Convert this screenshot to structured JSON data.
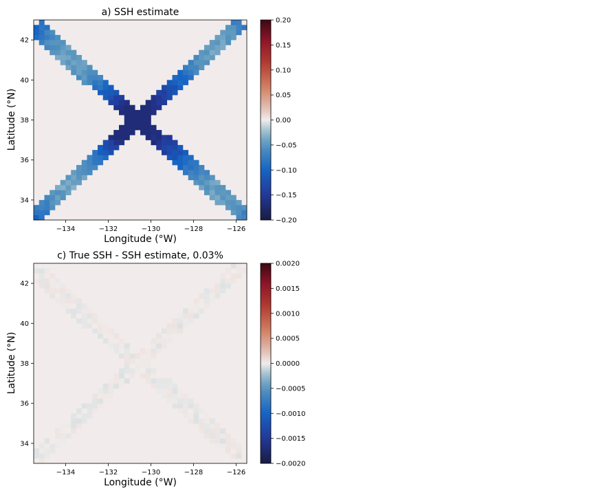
{
  "chart_data": [
    {
      "type": "heatmap",
      "title": "a) SSH estimate",
      "xlabel": "Longitude (°W)",
      "ylabel": "Latitude (°N)",
      "xlim": [
        -135.5,
        -125.5
      ],
      "ylim": [
        33.0,
        43.0
      ],
      "xticks": [
        -134,
        -132,
        -130,
        -128,
        -126
      ],
      "yticks": [
        34,
        36,
        38,
        40,
        42
      ],
      "xtick_labels": [
        "−134",
        "−132",
        "−130",
        "−128",
        "−126"
      ],
      "ytick_labels": [
        "34",
        "36",
        "38",
        "40",
        "42"
      ],
      "colorbar": {
        "range": [
          -0.2,
          0.2
        ],
        "ticks": [
          0.2,
          0.15,
          0.1,
          0.05,
          0.0,
          -0.05,
          -0.1,
          -0.15,
          -0.2
        ],
        "tick_labels": [
          "0.20",
          "0.15",
          "0.10",
          "0.05",
          "0.00",
          "−0.05",
          "−0.10",
          "−0.15",
          "−0.20"
        ],
        "colormap": "balance"
      },
      "background_value": 0.0,
      "tracks": [
        {
          "from": [
            -135.5,
            42.7
          ],
          "to": [
            -125.5,
            33.1
          ],
          "width_deg": 0.8
        },
        {
          "from": [
            -135.5,
            33.1
          ],
          "to": [
            -125.7,
            42.9
          ],
          "width_deg": 0.8
        }
      ],
      "track_value_range": [
        -0.17,
        -0.02
      ]
    },
    {
      "type": "heatmap",
      "title": "c) True SSH - SSH estimate, 0.03%",
      "xlabel": "Longitude (°W)",
      "ylabel": "Latitude (°N)",
      "xlim": [
        -135.5,
        -125.5
      ],
      "ylim": [
        33.0,
        43.0
      ],
      "xticks": [
        -134,
        -132,
        -130,
        -128,
        -126
      ],
      "yticks": [
        34,
        36,
        38,
        40,
        42
      ],
      "xtick_labels": [
        "−134",
        "−132",
        "−130",
        "−128",
        "−126"
      ],
      "ytick_labels": [
        "34",
        "36",
        "38",
        "40",
        "42"
      ],
      "colorbar": {
        "range": [
          -0.002,
          0.002
        ],
        "ticks": [
          0.002,
          0.0015,
          0.001,
          0.0005,
          0.0,
          -0.0005,
          -0.001,
          -0.0015,
          -0.002
        ],
        "tick_labels": [
          "0.0020",
          "0.0015",
          "0.0010",
          "0.0005",
          "0.0000",
          "−0.0005",
          "−0.0010",
          "−0.0015",
          "−0.0020"
        ],
        "colormap": "balance"
      },
      "background_value": 0.0,
      "track_value_range": [
        -5e-05,
        5e-05
      ]
    }
  ]
}
